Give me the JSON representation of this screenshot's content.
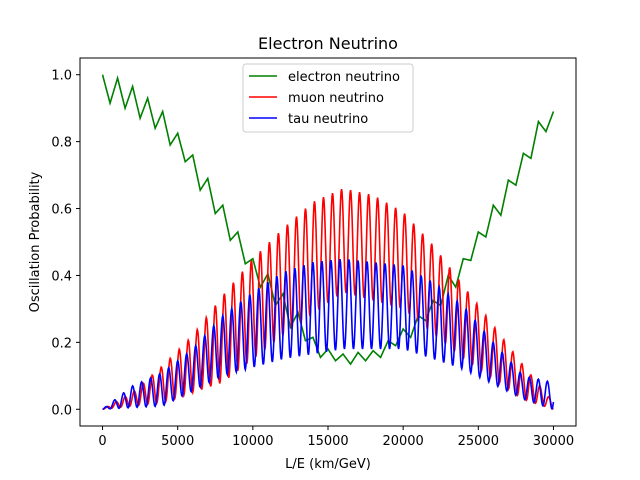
{
  "chart_data": {
    "type": "line",
    "title": "Electron Neutrino",
    "xlabel": "L/E (km/GeV)",
    "ylabel": "Oscillation Probability",
    "xlim": [
      -1500,
      31500
    ],
    "ylim": [
      -0.05,
      1.05
    ],
    "xticks": [
      0,
      5000,
      10000,
      15000,
      20000,
      25000,
      30000
    ],
    "xtick_labels": [
      "0",
      "5000",
      "10000",
      "15000",
      "20000",
      "25000",
      "30000"
    ],
    "yticks": [
      0.0,
      0.2,
      0.4,
      0.6,
      0.8,
      1.0
    ],
    "ytick_labels": [
      "0.0",
      "0.2",
      "0.4",
      "0.6",
      "0.8",
      "1.0"
    ],
    "grid": false,
    "legend_position": "upper center",
    "x_range": [
      0,
      30000
    ],
    "series": [
      {
        "name": "electron neutrino",
        "color": "#008000",
        "points": [
          [
            0,
            1.0
          ],
          [
            500,
            0.915
          ],
          [
            1000,
            0.99
          ],
          [
            1500,
            0.9
          ],
          [
            2000,
            0.965
          ],
          [
            2500,
            0.87
          ],
          [
            3000,
            0.93
          ],
          [
            3500,
            0.84
          ],
          [
            4000,
            0.89
          ],
          [
            4500,
            0.79
          ],
          [
            5000,
            0.825
          ],
          [
            5500,
            0.74
          ],
          [
            6000,
            0.76
          ],
          [
            6500,
            0.655
          ],
          [
            7000,
            0.69
          ],
          [
            7500,
            0.585
          ],
          [
            8000,
            0.61
          ],
          [
            8500,
            0.505
          ],
          [
            9000,
            0.53
          ],
          [
            9500,
            0.435
          ],
          [
            10000,
            0.45
          ],
          [
            10500,
            0.365
          ],
          [
            11000,
            0.405
          ],
          [
            11500,
            0.31
          ],
          [
            12000,
            0.345
          ],
          [
            12500,
            0.245
          ],
          [
            13000,
            0.29
          ],
          [
            13500,
            0.205
          ],
          [
            14000,
            0.215
          ],
          [
            14500,
            0.155
          ],
          [
            15000,
            0.18
          ],
          [
            15500,
            0.145
          ],
          [
            16000,
            0.165
          ],
          [
            16500,
            0.135
          ],
          [
            17000,
            0.17
          ],
          [
            17500,
            0.145
          ],
          [
            18000,
            0.175
          ],
          [
            18500,
            0.155
          ],
          [
            19000,
            0.205
          ],
          [
            19500,
            0.19
          ],
          [
            20000,
            0.24
          ],
          [
            20500,
            0.215
          ],
          [
            21000,
            0.28
          ],
          [
            21500,
            0.265
          ],
          [
            22000,
            0.325
          ],
          [
            22500,
            0.31
          ],
          [
            23000,
            0.4
          ],
          [
            23500,
            0.365
          ],
          [
            24000,
            0.45
          ],
          [
            24500,
            0.445
          ],
          [
            25000,
            0.53
          ],
          [
            25500,
            0.515
          ],
          [
            26000,
            0.61
          ],
          [
            26500,
            0.58
          ],
          [
            27000,
            0.685
          ],
          [
            27500,
            0.67
          ],
          [
            28000,
            0.765
          ],
          [
            28500,
            0.75
          ],
          [
            29000,
            0.86
          ],
          [
            29500,
            0.83
          ],
          [
            30000,
            0.89
          ]
        ]
      },
      {
        "name": "muon neutrino",
        "color": "#ff0000",
        "envelope_points": [
          [
            0,
            0.0
          ],
          [
            2000,
            0.05
          ],
          [
            4000,
            0.13
          ],
          [
            6000,
            0.22
          ],
          [
            8000,
            0.34
          ],
          [
            10000,
            0.45
          ],
          [
            12000,
            0.54
          ],
          [
            14000,
            0.62
          ],
          [
            16000,
            0.66
          ],
          [
            18000,
            0.64
          ],
          [
            20000,
            0.59
          ],
          [
            22000,
            0.49
          ],
          [
            24000,
            0.37
          ],
          [
            26000,
            0.25
          ],
          [
            28000,
            0.13
          ],
          [
            30000,
            0.02
          ]
        ],
        "trough_points": [
          [
            0,
            0.0
          ],
          [
            4000,
            0.02
          ],
          [
            8000,
            0.08
          ],
          [
            12000,
            0.22
          ],
          [
            16000,
            0.35
          ],
          [
            20000,
            0.3
          ],
          [
            24000,
            0.15
          ],
          [
            28000,
            0.03
          ],
          [
            30000,
            0.0
          ]
        ]
      },
      {
        "name": "tau neutrino",
        "color": "#0000ff",
        "envelope_points": [
          [
            0,
            0.0
          ],
          [
            2000,
            0.07
          ],
          [
            4000,
            0.11
          ],
          [
            6000,
            0.18
          ],
          [
            8000,
            0.28
          ],
          [
            10000,
            0.35
          ],
          [
            12000,
            0.41
          ],
          [
            14000,
            0.44
          ],
          [
            16000,
            0.45
          ],
          [
            18000,
            0.44
          ],
          [
            20000,
            0.43
          ],
          [
            22000,
            0.38
          ],
          [
            24000,
            0.31
          ],
          [
            26000,
            0.2
          ],
          [
            28000,
            0.1
          ],
          [
            30000,
            0.08
          ]
        ],
        "trough_points": [
          [
            0,
            0.0
          ],
          [
            4000,
            0.01
          ],
          [
            8000,
            0.1
          ],
          [
            12000,
            0.15
          ],
          [
            16000,
            0.18
          ],
          [
            20000,
            0.18
          ],
          [
            24000,
            0.12
          ],
          [
            28000,
            0.03
          ],
          [
            30000,
            0.0
          ]
        ]
      }
    ],
    "oscillation_period": 600
  }
}
